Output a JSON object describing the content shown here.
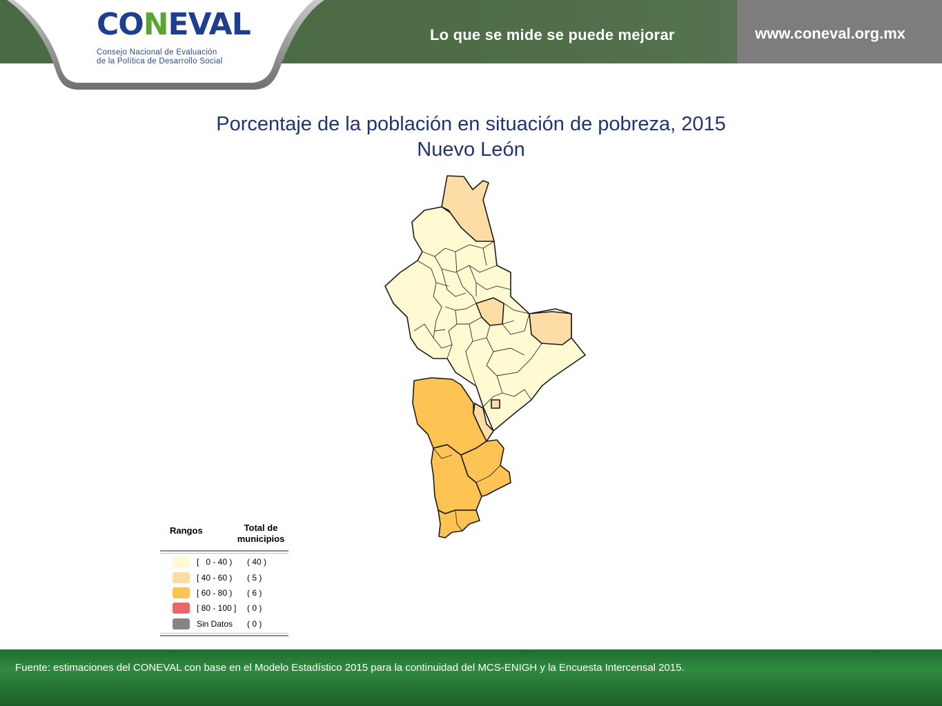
{
  "header": {
    "logo_text_main": "CONEVAL",
    "logo_subtitle_line1": "Consejo Nacional de Evaluación",
    "logo_subtitle_line2": "de la Política de Desarrollo Social",
    "slogan": "Lo que se mide se puede mejorar",
    "url": "www.coneval.org.mx"
  },
  "title": {
    "line1": "Porcentaje de la población en situación de pobreza, 2015",
    "line2": "Nuevo León"
  },
  "legend": {
    "header_ranges": "Rangos",
    "header_count": "Total de municipios",
    "items": [
      {
        "range": "[   0 - 40 )",
        "count": "( 40 )",
        "color": "#fffad1"
      },
      {
        "range": "[ 40 - 60 )",
        "count": "( 5 )",
        "color": "#fddca6"
      },
      {
        "range": "[ 60 - 80 )",
        "count": "( 6 )",
        "color": "#fdc453"
      },
      {
        "range": "[ 80 - 100 ]",
        "count": "( 0 )",
        "color": "#e9666a"
      },
      {
        "range": "Sin Datos",
        "count": "( 0 )",
        "color": "#858585"
      }
    ]
  },
  "footer": {
    "source": "Fuente: estimaciones del CONEVAL con base en el Modelo Estadístico 2015 para la continuidad del MCS-ENIGH y la Encuesta Intercensal 2015."
  },
  "colors": {
    "header_green": "#4a6a44",
    "header_gray": "#7d7d7d",
    "title_blue": "#1f3472",
    "footer_green": "#2f8a3e"
  }
}
